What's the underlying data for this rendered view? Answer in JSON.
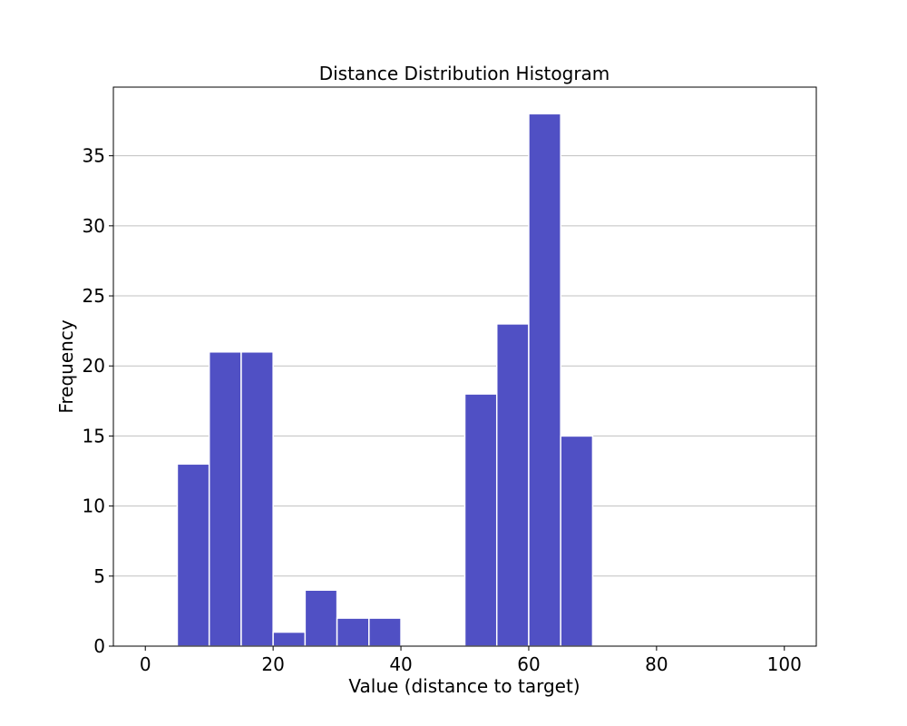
{
  "chart_data": {
    "type": "bar",
    "subtype": "histogram",
    "title": "Distance Distribution Histogram",
    "xlabel": "Value (distance to target)",
    "ylabel": "Frequency",
    "bins": [
      {
        "start": 5,
        "end": 10,
        "count": 13
      },
      {
        "start": 10,
        "end": 15,
        "count": 21
      },
      {
        "start": 15,
        "end": 20,
        "count": 21
      },
      {
        "start": 20,
        "end": 25,
        "count": 1
      },
      {
        "start": 25,
        "end": 30,
        "count": 4
      },
      {
        "start": 30,
        "end": 35,
        "count": 2
      },
      {
        "start": 35,
        "end": 40,
        "count": 2
      },
      {
        "start": 50,
        "end": 55,
        "count": 18
      },
      {
        "start": 55,
        "end": 60,
        "count": 23
      },
      {
        "start": 60,
        "end": 65,
        "count": 38
      },
      {
        "start": 65,
        "end": 70,
        "count": 15
      }
    ],
    "xlim": [
      -5,
      105
    ],
    "ylim": [
      0,
      39.9
    ],
    "xticks": [
      0,
      20,
      40,
      60,
      80,
      100
    ],
    "yticks": [
      0,
      5,
      10,
      15,
      20,
      25,
      30,
      35
    ],
    "grid": "horizontal",
    "bar_color": "#5050c4",
    "bar_edge_color": "#ffffff",
    "grid_color": "#c0c0c0"
  }
}
